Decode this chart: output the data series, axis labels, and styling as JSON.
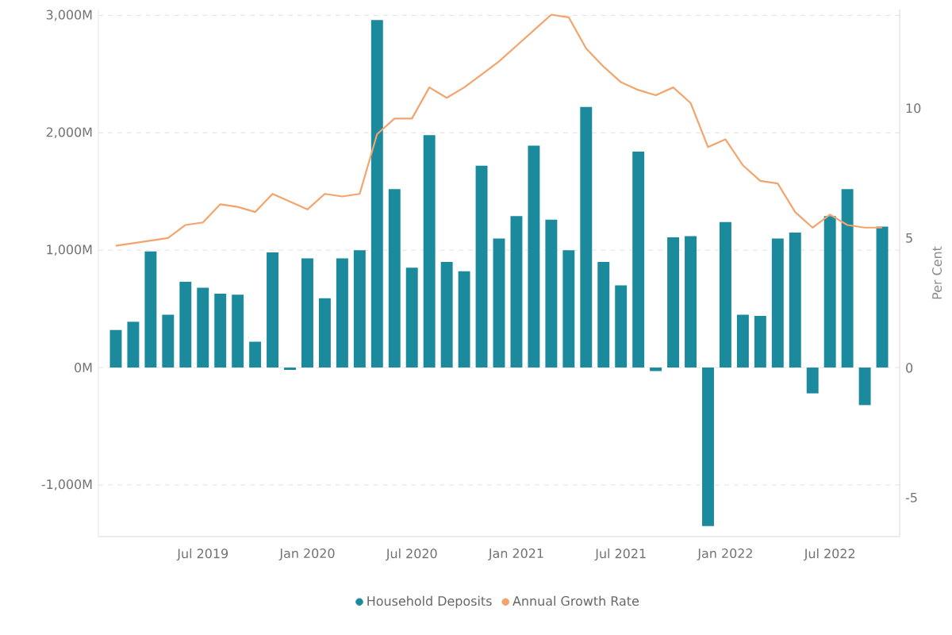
{
  "chart_data": {
    "type": "bar",
    "x": [
      "2019-02",
      "2019-03",
      "2019-04",
      "2019-05",
      "2019-06",
      "2019-07",
      "2019-08",
      "2019-09",
      "2019-10",
      "2019-11",
      "2019-12",
      "2020-01",
      "2020-02",
      "2020-03",
      "2020-04",
      "2020-05",
      "2020-06",
      "2020-07",
      "2020-08",
      "2020-09",
      "2020-10",
      "2020-11",
      "2020-12",
      "2021-01",
      "2021-02",
      "2021-03",
      "2021-04",
      "2021-05",
      "2021-06",
      "2021-07",
      "2021-08",
      "2021-09",
      "2021-10",
      "2021-11",
      "2021-12",
      "2022-01",
      "2022-02",
      "2022-03",
      "2022-04",
      "2022-05",
      "2022-06",
      "2022-07",
      "2022-08",
      "2022-09",
      "2022-10"
    ],
    "series": [
      {
        "name": "Household Deposits",
        "color": "#1b8a9c",
        "values": [
          320,
          390,
          990,
          450,
          730,
          680,
          630,
          620,
          220,
          980,
          -20,
          930,
          590,
          930,
          1000,
          2960,
          1520,
          850,
          1980,
          900,
          820,
          1720,
          1100,
          1290,
          1890,
          1260,
          1000,
          2220,
          900,
          700,
          1840,
          -30,
          1110,
          1120,
          -1350,
          1240,
          450,
          440,
          1100,
          1150,
          -220,
          1290,
          1520,
          -320,
          1200
        ]
      },
      {
        "name": "Annual Growth Rate",
        "type": "line",
        "axis": "y2",
        "color": "#f3a46c",
        "values": [
          4.7,
          4.8,
          4.9,
          5.0,
          5.5,
          5.6,
          6.3,
          6.2,
          6.0,
          6.7,
          6.4,
          6.1,
          6.7,
          6.6,
          6.7,
          9.0,
          9.6,
          9.6,
          10.8,
          10.4,
          10.8,
          11.3,
          11.8,
          12.4,
          13.0,
          13.6,
          13.5,
          12.3,
          11.6,
          11.0,
          10.7,
          10.5,
          10.8,
          10.2,
          8.5,
          8.8,
          7.8,
          7.2,
          7.1,
          6.0,
          5.4,
          5.9,
          5.5,
          5.4,
          5.4
        ]
      }
    ],
    "xlim": [
      "2019-01",
      "2022-11"
    ],
    "xticks": [
      {
        "value": "2019-07",
        "label": "Jul 2019"
      },
      {
        "value": "2020-01",
        "label": "Jan 2020"
      },
      {
        "value": "2020-07",
        "label": "Jul 2020"
      },
      {
        "value": "2021-01",
        "label": "Jan 2021"
      },
      {
        "value": "2021-07",
        "label": "Jul 2021"
      },
      {
        "value": "2022-01",
        "label": "Jan 2022"
      },
      {
        "value": "2022-07",
        "label": "Jul 2022"
      }
    ],
    "ylim": [
      -1440,
      3050
    ],
    "yticks": [
      {
        "value": -1000,
        "label": "-1,000M"
      },
      {
        "value": 0,
        "label": "0M"
      },
      {
        "value": 1000,
        "label": "1,000M"
      },
      {
        "value": 2000,
        "label": "2,000M"
      },
      {
        "value": 3000,
        "label": "3,000M"
      }
    ],
    "y2lim": [
      -6.5,
      13.8
    ],
    "y2ticks": [
      -5,
      0,
      5,
      10
    ],
    "y2label": "Per Cent",
    "grid": "y",
    "legend": "bottom",
    "marker": "none"
  }
}
